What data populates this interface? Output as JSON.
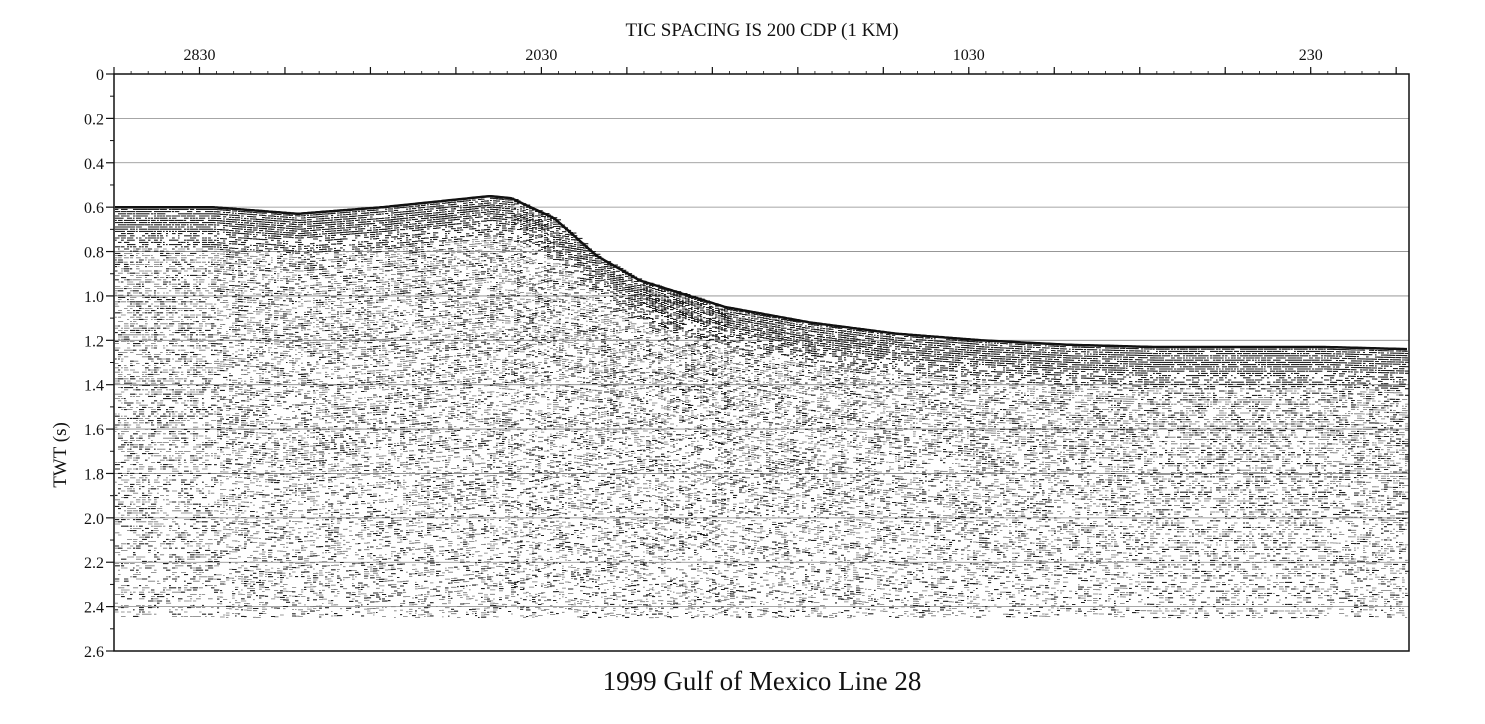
{
  "chart_data": {
    "type": "seismic-section",
    "top_axis_title": "TIC SPACING IS 200 CDP (1 KM)",
    "title": "1999 Gulf of Mexico Line 28",
    "xlabel": "",
    "ylabel": "TWT (s)",
    "x_axis": {
      "label_values": [
        2830,
        2030,
        1030,
        230
      ],
      "tick_labels": [
        "2830",
        "2030",
        "1030",
        "230"
      ],
      "direction": "decreasing to the right",
      "xlim": [
        3030,
        0
      ],
      "tick_spacing": 200
    },
    "y_axis": {
      "ylim": [
        0,
        2.6
      ],
      "ticks": [
        0,
        0.2,
        0.4,
        0.6,
        0.8,
        1.0,
        1.2,
        1.4,
        1.6,
        1.8,
        2.0,
        2.2,
        2.4,
        2.6
      ],
      "tick_labels": [
        "0",
        "0.2",
        "0.4",
        "0.6",
        "0.8",
        "1.0",
        "1.2",
        "1.4",
        "1.6",
        "1.8",
        "2.0",
        "2.2",
        "2.4",
        "2.6"
      ],
      "inverted": true
    },
    "grid": true,
    "seafloor": {
      "cdp": [
        3030,
        2800,
        2600,
        2400,
        2250,
        2150,
        2100,
        2000,
        1900,
        1800,
        1600,
        1400,
        1200,
        1000,
        800,
        600,
        400,
        200,
        0
      ],
      "twt": [
        0.6,
        0.6,
        0.63,
        0.6,
        0.57,
        0.55,
        0.56,
        0.65,
        0.82,
        0.93,
        1.05,
        1.12,
        1.17,
        1.2,
        1.22,
        1.23,
        1.23,
        1.23,
        1.24
      ]
    },
    "record_end_twt": 2.45,
    "colors": {
      "background": "#ffffff",
      "ink": "#111111",
      "grid": "#888888"
    }
  }
}
